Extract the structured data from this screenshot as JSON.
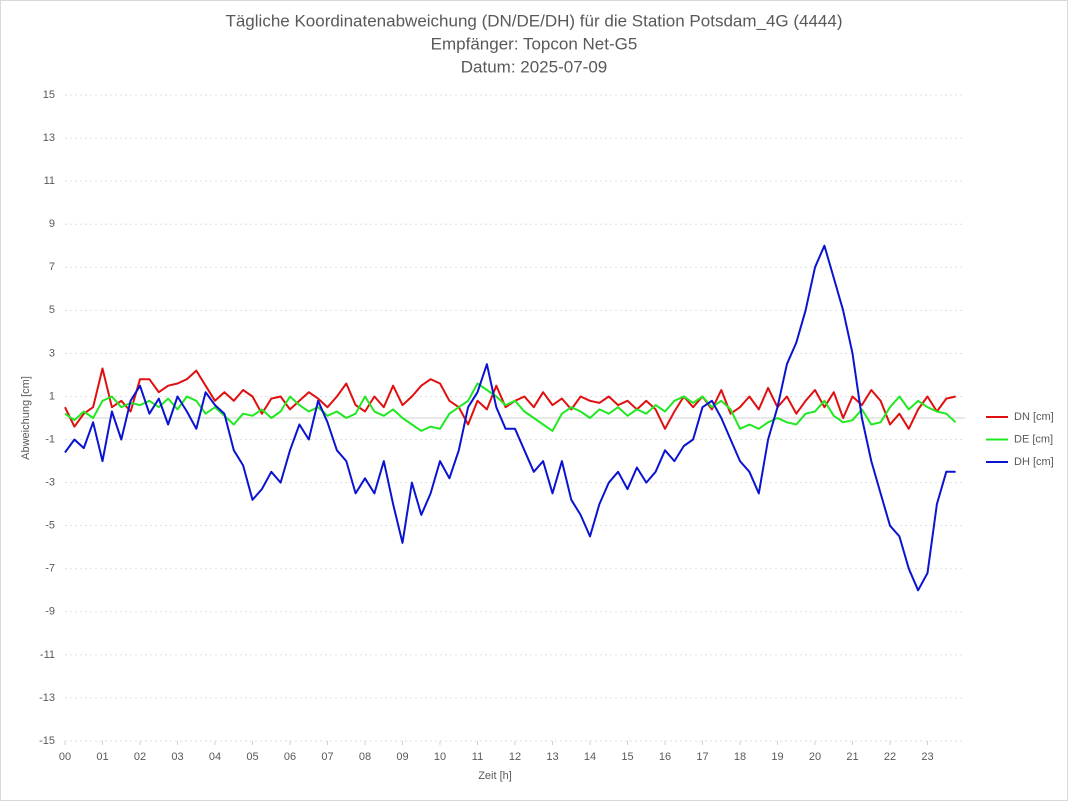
{
  "chart_data": {
    "type": "line",
    "title": "Tägliche Koordinatenabweichung (DN/DE/DH) für die Station Potsdam_4G (4444)",
    "subtitle": [
      "Empfänger: Topcon Net-G5",
      "Datum: 2025-07-09"
    ],
    "x_label": "Zeit [h]",
    "y_label": "Abweichung [cm]",
    "x": [
      0,
      0.25,
      0.5,
      0.75,
      1,
      1.25,
      1.5,
      1.75,
      2,
      2.25,
      2.5,
      2.75,
      3,
      3.25,
      3.5,
      3.75,
      4,
      4.25,
      4.5,
      4.75,
      5,
      5.25,
      5.5,
      5.75,
      6,
      6.25,
      6.5,
      6.75,
      7,
      7.25,
      7.5,
      7.75,
      8,
      8.25,
      8.5,
      8.75,
      9,
      9.25,
      9.5,
      9.75,
      10,
      10.25,
      10.5,
      10.75,
      11,
      11.25,
      11.5,
      11.75,
      12,
      12.25,
      12.5,
      12.75,
      13,
      13.25,
      13.5,
      13.75,
      14,
      14.25,
      14.5,
      14.75,
      15,
      15.25,
      15.5,
      15.75,
      16,
      16.25,
      16.5,
      16.75,
      17,
      17.25,
      17.5,
      17.75,
      18,
      18.25,
      18.5,
      18.75,
      19,
      19.25,
      19.5,
      19.75,
      20,
      20.25,
      20.5,
      20.75,
      21,
      21.25,
      21.5,
      21.75,
      22,
      22.25,
      22.5,
      22.75,
      23,
      23.25,
      23.5,
      23.75
    ],
    "series": [
      {
        "name": "DN [cm]",
        "color": "#e01010",
        "values": [
          0.5,
          -0.4,
          0.2,
          0.5,
          2.3,
          0.5,
          0.8,
          0.3,
          1.8,
          1.8,
          1.2,
          1.5,
          1.6,
          1.8,
          2.2,
          1.5,
          0.8,
          1.2,
          0.8,
          1.3,
          1.0,
          0.2,
          0.9,
          1.0,
          0.4,
          0.8,
          1.2,
          0.9,
          0.5,
          1.0,
          1.6,
          0.6,
          0.3,
          1.0,
          0.5,
          1.5,
          0.6,
          1.0,
          1.5,
          1.8,
          1.6,
          0.8,
          0.5,
          -0.3,
          0.8,
          0.4,
          1.5,
          0.5,
          0.8,
          1.0,
          0.5,
          1.2,
          0.6,
          0.9,
          0.4,
          1.0,
          0.8,
          0.7,
          1.0,
          0.6,
          0.8,
          0.4,
          0.8,
          0.4,
          -0.5,
          0.3,
          1.0,
          0.5,
          1.0,
          0.4,
          1.3,
          0.2,
          0.5,
          1.0,
          0.4,
          1.4,
          0.5,
          1.0,
          0.2,
          0.8,
          1.3,
          0.5,
          1.2,
          0.0,
          1.0,
          0.6,
          1.3,
          0.8,
          -0.3,
          0.2,
          -0.5,
          0.4,
          1.0,
          0.3,
          0.9,
          1.0
        ]
      },
      {
        "name": "DE [cm]",
        "color": "#22e822",
        "values": [
          0.2,
          -0.1,
          0.3,
          0.0,
          0.8,
          1.0,
          0.5,
          0.7,
          0.6,
          0.8,
          0.5,
          0.9,
          0.4,
          1.0,
          0.8,
          0.2,
          0.5,
          0.1,
          -0.3,
          0.2,
          0.1,
          0.4,
          0.0,
          0.3,
          1.0,
          0.6,
          0.3,
          0.5,
          0.1,
          0.3,
          0.0,
          0.2,
          1.0,
          0.3,
          0.1,
          0.4,
          0.0,
          -0.3,
          -0.6,
          -0.4,
          -0.5,
          0.2,
          0.5,
          0.8,
          1.6,
          1.3,
          1.0,
          0.6,
          0.8,
          0.3,
          0.0,
          -0.3,
          -0.6,
          0.2,
          0.5,
          0.3,
          0.0,
          0.4,
          0.2,
          0.5,
          0.1,
          0.4,
          0.2,
          0.6,
          0.3,
          0.8,
          1.0,
          0.7,
          1.0,
          0.5,
          0.8,
          0.4,
          -0.5,
          -0.3,
          -0.5,
          -0.2,
          0.0,
          -0.2,
          -0.3,
          0.2,
          0.3,
          0.8,
          0.1,
          -0.2,
          -0.1,
          0.4,
          -0.3,
          -0.2,
          0.5,
          1.0,
          0.4,
          0.8,
          0.5,
          0.3,
          0.2,
          -0.2
        ]
      },
      {
        "name": "DH [cm]",
        "color": "#0a14d0",
        "values": [
          -1.6,
          -1.0,
          -1.4,
          -0.2,
          -2.0,
          0.3,
          -1.0,
          0.8,
          1.5,
          0.2,
          0.9,
          -0.3,
          1.0,
          0.3,
          -0.5,
          1.2,
          0.6,
          0.2,
          -1.5,
          -2.2,
          -3.8,
          -3.3,
          -2.5,
          -3.0,
          -1.5,
          -0.3,
          -1.0,
          0.8,
          -0.2,
          -1.5,
          -2.0,
          -3.5,
          -2.8,
          -3.5,
          -2.0,
          -4.0,
          -5.8,
          -3.0,
          -4.5,
          -3.5,
          -2.0,
          -2.8,
          -1.5,
          0.5,
          1.2,
          2.5,
          0.5,
          -0.5,
          -0.5,
          -1.5,
          -2.5,
          -2.0,
          -3.5,
          -2.0,
          -3.8,
          -4.5,
          -5.5,
          -4.0,
          -3.0,
          -2.5,
          -3.3,
          -2.3,
          -3.0,
          -2.5,
          -1.5,
          -2.0,
          -1.3,
          -1.0,
          0.5,
          0.8,
          0.0,
          -1.0,
          -2.0,
          -2.5,
          -3.5,
          -1.0,
          0.5,
          2.5,
          3.5,
          5.0,
          7.0,
          8.0,
          6.5,
          5.0,
          3.0,
          0.0,
          -2.0,
          -3.5,
          -5.0,
          -5.5,
          -7.0,
          -8.0,
          -7.2,
          -4.0,
          -2.5,
          -2.5
        ]
      }
    ],
    "xlim": [
      0,
      24
    ],
    "xticks": [
      {
        "value": 0,
        "label": "00"
      },
      {
        "value": 1,
        "label": "01"
      },
      {
        "value": 2,
        "label": "02"
      },
      {
        "value": 3,
        "label": "03"
      },
      {
        "value": 4,
        "label": "04"
      },
      {
        "value": 5,
        "label": "05"
      },
      {
        "value": 6,
        "label": "06"
      },
      {
        "value": 7,
        "label": "07"
      },
      {
        "value": 8,
        "label": "08"
      },
      {
        "value": 9,
        "label": "09"
      },
      10,
      11,
      12,
      13,
      14,
      15,
      16,
      17,
      18,
      19,
      20,
      21,
      22,
      23
    ],
    "ylim": [
      -15,
      15
    ],
    "yticks": [
      -15,
      -13,
      -11,
      -9,
      -7,
      -5,
      -3,
      -1,
      1,
      3,
      5,
      7,
      9,
      11,
      13,
      15
    ],
    "grid": true,
    "legend": "right"
  }
}
